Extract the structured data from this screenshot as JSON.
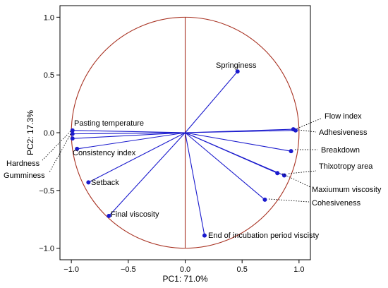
{
  "chart_data": {
    "type": "scatter",
    "subtype": "pca-loading-plot",
    "title": "",
    "xlabel": "PC1: 71.0%",
    "ylabel": "PC2: 17.3%",
    "xlim": [
      -1.1,
      1.1
    ],
    "ylim": [
      -1.1,
      1.1
    ],
    "xticks": [
      "−1.0",
      "−0.5",
      "0.0",
      "0.5",
      "1.0"
    ],
    "yticks": [
      "−1.0",
      "−0.5",
      "0.0",
      "0.5",
      "1.0"
    ],
    "xtick_values": [
      -1.0,
      -0.5,
      0.0,
      0.5,
      1.0
    ],
    "ytick_values": [
      -1.0,
      -0.5,
      0.0,
      0.5,
      1.0
    ],
    "unit_circle": true,
    "grid": false,
    "colors": {
      "vectors": "#1a1acd",
      "circle": "#a83222",
      "leaders": "#000000"
    },
    "points": [
      {
        "name": "Springiness",
        "x": 0.46,
        "y": 0.53
      },
      {
        "name": "Flow index",
        "x": 0.95,
        "y": 0.03
      },
      {
        "name": "Adhesiveness",
        "x": 0.97,
        "y": 0.02
      },
      {
        "name": "Breakdown",
        "x": 0.93,
        "y": -0.16
      },
      {
        "name": "Thixotropy area",
        "x": 0.87,
        "y": -0.37
      },
      {
        "name": "Maxiumum viscosity",
        "x": 0.81,
        "y": -0.35
      },
      {
        "name": "Cohesiveness",
        "x": 0.7,
        "y": -0.58
      },
      {
        "name": "End of incubation period viscisty",
        "x": 0.17,
        "y": -0.89
      },
      {
        "name": "Final viscosity",
        "x": -0.67,
        "y": -0.72
      },
      {
        "name": "Setback",
        "x": -0.85,
        "y": -0.43
      },
      {
        "name": "Consistency index",
        "x": -0.95,
        "y": -0.14
      },
      {
        "name": "Pasting temperature",
        "x": -0.99,
        "y": 0.02
      },
      {
        "name": "Hardness",
        "x": -0.99,
        "y": -0.01
      },
      {
        "name": "Gumminess",
        "x": -0.99,
        "y": -0.05
      }
    ]
  }
}
